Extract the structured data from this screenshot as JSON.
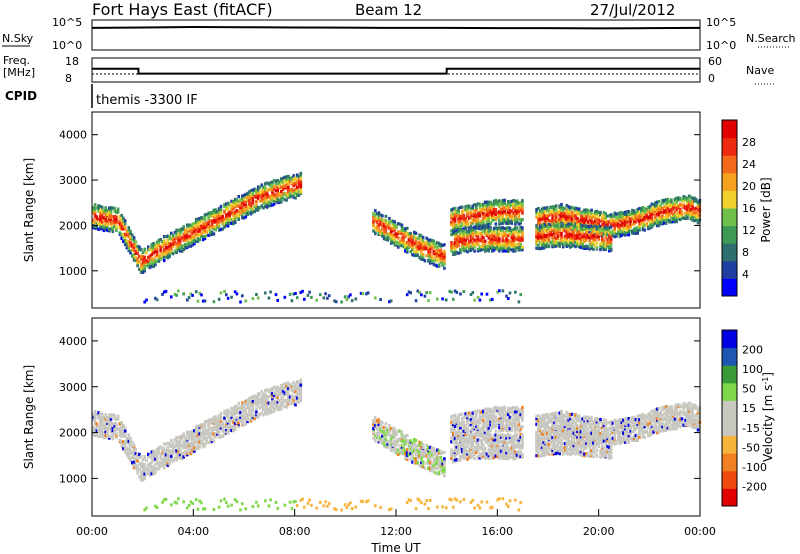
{
  "header": {
    "station": "Fort Hays East (fitACF)",
    "beam": "Beam 12",
    "date": "27/Jul/2012"
  },
  "panels": {
    "noise": {
      "left_label": "N.Sky",
      "right_label": "N.Search",
      "left_ticks": [
        "10^5",
        "10^0"
      ],
      "right_ticks": [
        "10^5",
        "10^0"
      ]
    },
    "freq": {
      "left_label_line1": "Freq.",
      "left_label_line2": "[MHz]",
      "right_label": "Nave",
      "left_ticks": [
        "18",
        "8"
      ],
      "right_ticks": [
        "60",
        "0"
      ]
    },
    "cpid": {
      "label": "CPID",
      "program": "themis -3300 IF"
    }
  },
  "chart_data": [
    {
      "type": "line",
      "panel": "noise",
      "series": [
        {
          "name": "N.Sky",
          "x": [
            "00:00",
            "02:00",
            "04:00",
            "06:00",
            "08:00",
            "10:00",
            "12:00",
            "14:00",
            "16:00",
            "18:00",
            "20:00",
            "22:00",
            "24:00"
          ],
          "values_log10": [
            4.6,
            4.7,
            4.8,
            4.75,
            4.7,
            4.65,
            4.6,
            4.6,
            4.55,
            4.55,
            4.5,
            4.55,
            4.6
          ]
        }
      ]
    },
    {
      "type": "line",
      "panel": "freq",
      "ylim_left": [
        8,
        18
      ],
      "ylim_right": [
        0,
        60
      ],
      "series": [
        {
          "name": "Freq.",
          "x": [
            "00:00",
            "01:50",
            "01:50",
            "14:00",
            "14:00",
            "24:00"
          ],
          "values": [
            13.5,
            13.5,
            11.5,
            11.5,
            13.5,
            13.5
          ]
        },
        {
          "name": "Nave",
          "x": [
            "00:00",
            "24:00"
          ],
          "values": [
            20,
            20
          ]
        }
      ]
    },
    {
      "type": "heatmap",
      "panel": "power",
      "ylabel": "Slant Range [km]",
      "yticks": [
        "1000",
        "2000",
        "3000",
        "4000"
      ],
      "ylim": [
        180,
        4500
      ],
      "colorbar": {
        "label": "Power [dB]",
        "ticks": [
          "28",
          "24",
          "20",
          "16",
          "12",
          "8",
          "4"
        ],
        "colors": [
          "#0000ff",
          "#1f3fa0",
          "#2f6e6e",
          "#3d9a55",
          "#6fc04a",
          "#f0d02c",
          "#f4a21f",
          "#f26a1a",
          "#ee2a10",
          "#e00000"
        ]
      },
      "echo_bands": [
        {
          "x": [
            0,
            1,
            1.9,
            2.5,
            3.5,
            4.5,
            5.5,
            6.5,
            7.5,
            8.2
          ],
          "y": [
            2200,
            2100,
            1200,
            1400,
            1700,
            2000,
            2300,
            2600,
            2800,
            2900
          ]
        },
        {
          "x": [
            11,
            12,
            13,
            13.9
          ],
          "y": [
            2100,
            1800,
            1500,
            1300
          ]
        },
        {
          "x": [
            14.1,
            15,
            16,
            17
          ],
          "y": [
            2100,
            2200,
            2300,
            2300
          ]
        },
        {
          "x": [
            14.1,
            15,
            16,
            17
          ],
          "y": [
            1600,
            1700,
            1700,
            1700
          ]
        },
        {
          "x": [
            17.5,
            18.5,
            19.5,
            20.5,
            21.5,
            22.5,
            23.5,
            24
          ],
          "y": [
            2100,
            2200,
            2100,
            2000,
            2100,
            2300,
            2400,
            2300
          ]
        },
        {
          "x": [
            17.5,
            18.5,
            19.5,
            20.5
          ],
          "y": [
            1750,
            1800,
            1750,
            1700
          ]
        }
      ]
    },
    {
      "type": "heatmap",
      "panel": "velocity",
      "xlabel": "Time UT",
      "ylabel": "Slant Range [km]",
      "xticks": [
        "00:00",
        "04:00",
        "08:00",
        "12:00",
        "16:00",
        "20:00",
        "00:00"
      ],
      "yticks": [
        "1000",
        "2000",
        "3000",
        "4000"
      ],
      "ylim": [
        180,
        4500
      ],
      "colorbar": {
        "label": "Velocity [m s^-1]",
        "ticks": [
          "200",
          "100",
          "50",
          "15",
          "-15",
          "-50",
          "-100",
          "-200"
        ],
        "colors": [
          "#0000e0",
          "#1e56b4",
          "#3a9a3a",
          "#7ed84a",
          "#c8c8c0",
          "#c8c8c0",
          "#f6b43a",
          "#f08020",
          "#ee4a10",
          "#e00000"
        ]
      }
    }
  ]
}
